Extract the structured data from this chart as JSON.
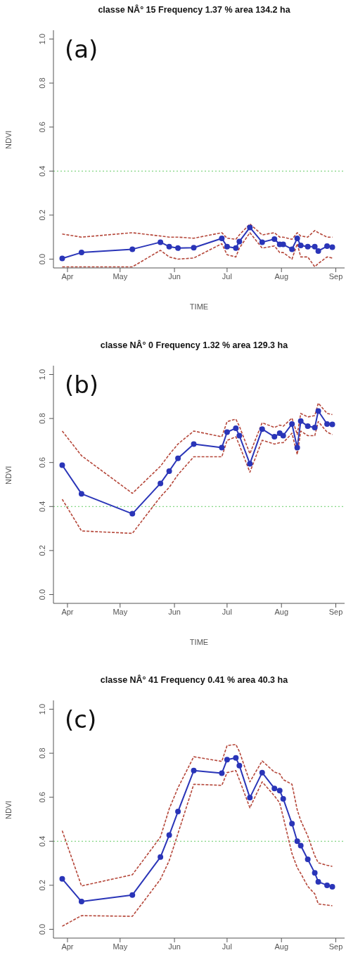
{
  "chart_data": [
    {
      "type": "line",
      "title": "classe NÂ° 15  Frequency 1.37 %  area 134.2 ha",
      "xlabel": "TIME",
      "ylabel": "NDVI",
      "annotations": [
        "(a)"
      ],
      "x": [
        "--03-29",
        "--04-09",
        "--05-08",
        "--05-24",
        "--05-29",
        "--06-03",
        "--06-12",
        "--06-28",
        "--07-01",
        "--07-06",
        "--07-08",
        "--07-14",
        "--07-21",
        "--07-28",
        "--07-31",
        "--08-02",
        "--08-07",
        "--08-10",
        "--08-12",
        "--08-16",
        "--08-20",
        "--08-22",
        "--08-27",
        "--08-30"
      ],
      "series": [
        {
          "color": "#2a35b8",
          "marker": "circle",
          "line_style": "solid",
          "values": [
            0.003,
            0.03,
            0.045,
            0.077,
            0.057,
            0.05,
            0.052,
            0.094,
            0.057,
            0.05,
            0.08,
            0.144,
            0.077,
            0.091,
            0.067,
            0.067,
            0.045,
            0.094,
            0.062,
            0.057,
            0.057,
            0.037,
            0.059,
            0.054
          ]
        },
        {
          "color": "#b5473a",
          "marker": "none",
          "line_style": "dashed",
          "values": [
            0.114,
            0.1,
            0.12,
            0.105,
            0.1,
            0.1,
            0.095,
            0.12,
            0.095,
            0.09,
            0.11,
            0.16,
            0.11,
            0.12,
            0.1,
            0.1,
            0.09,
            0.12,
            0.105,
            0.1,
            0.13,
            0.12,
            0.1,
            0.1
          ]
        },
        {
          "color": "#b5473a",
          "marker": "none",
          "line_style": "dashed",
          "values": [
            -0.035,
            -0.035,
            -0.035,
            0.04,
            0.01,
            0.0,
            0.005,
            0.07,
            0.02,
            0.01,
            0.05,
            0.12,
            0.05,
            0.06,
            0.03,
            0.03,
            0.0,
            0.07,
            0.01,
            0.01,
            -0.035,
            -0.02,
            0.01,
            0.005
          ]
        }
      ],
      "xlim": [
        "--03-24",
        "--09-06"
      ],
      "xticks": [
        {
          "value": "--04-01",
          "label": "Apr"
        },
        {
          "value": "--05-01",
          "label": "May"
        },
        {
          "value": "--06-01",
          "label": "Jun"
        },
        {
          "value": "--07-01",
          "label": "Jul"
        },
        {
          "value": "--08-01",
          "label": "Aug"
        },
        {
          "value": "--09-01",
          "label": "Sep"
        }
      ],
      "ylim": [
        -0.04,
        1.04
      ],
      "yticks": [
        {
          "value": 0,
          "label": "0.0"
        },
        {
          "value": 0.2,
          "label": "0.2"
        },
        {
          "value": 0.4,
          "label": "0.4"
        },
        {
          "value": 0.6,
          "label": "0.6"
        },
        {
          "value": 0.8,
          "label": "0.8"
        },
        {
          "value": 1,
          "label": "1.0"
        }
      ],
      "ref_lines": [
        {
          "axis": "y",
          "value": 0.4,
          "color": "#66cc66",
          "line_style": "dotted"
        }
      ]
    },
    {
      "type": "line",
      "title": "classe NÂ° 0  Frequency 1.32 %  area 129.3 ha",
      "xlabel": "TIME",
      "ylabel": "NDVI",
      "annotations": [
        "(b)"
      ],
      "x": [
        "--03-29",
        "--04-09",
        "--05-08",
        "--05-24",
        "--05-29",
        "--06-03",
        "--06-12",
        "--06-28",
        "--07-01",
        "--07-06",
        "--07-08",
        "--07-14",
        "--07-21",
        "--07-28",
        "--07-31",
        "--08-02",
        "--08-07",
        "--08-10",
        "--08-12",
        "--08-16",
        "--08-20",
        "--08-22",
        "--08-27",
        "--08-30"
      ],
      "series": [
        {
          "color": "#2a35b8",
          "marker": "circle",
          "line_style": "solid",
          "values": [
            0.588,
            0.458,
            0.367,
            0.505,
            0.561,
            0.619,
            0.684,
            0.668,
            0.738,
            0.756,
            0.722,
            0.594,
            0.752,
            0.717,
            0.733,
            0.722,
            0.775,
            0.668,
            0.788,
            0.765,
            0.759,
            0.834,
            0.775,
            0.773
          ]
        },
        {
          "color": "#b5473a",
          "marker": "none",
          "line_style": "dashed",
          "values": [
            0.743,
            0.631,
            0.46,
            0.583,
            0.636,
            0.684,
            0.743,
            0.717,
            0.786,
            0.797,
            0.765,
            0.64,
            0.781,
            0.759,
            0.77,
            0.765,
            0.802,
            0.727,
            0.823,
            0.807,
            0.813,
            0.87,
            0.823,
            0.818
          ]
        },
        {
          "color": "#b5473a",
          "marker": "none",
          "line_style": "dashed",
          "values": [
            0.433,
            0.289,
            0.278,
            0.444,
            0.487,
            0.545,
            0.626,
            0.626,
            0.701,
            0.717,
            0.679,
            0.556,
            0.701,
            0.684,
            0.69,
            0.69,
            0.733,
            0.636,
            0.743,
            0.722,
            0.722,
            0.786,
            0.738,
            0.727
          ]
        }
      ],
      "xlim": [
        "--03-24",
        "--09-06"
      ],
      "xticks": [
        {
          "value": "--04-01",
          "label": "Apr"
        },
        {
          "value": "--05-01",
          "label": "May"
        },
        {
          "value": "--06-01",
          "label": "Jun"
        },
        {
          "value": "--07-01",
          "label": "Jul"
        },
        {
          "value": "--08-01",
          "label": "Aug"
        },
        {
          "value": "--09-01",
          "label": "Sep"
        }
      ],
      "ylim": [
        -0.04,
        1.04
      ],
      "yticks": [
        {
          "value": 0,
          "label": "0.0"
        },
        {
          "value": 0.2,
          "label": "0.2"
        },
        {
          "value": 0.4,
          "label": "0.4"
        },
        {
          "value": 0.6,
          "label": "0.6"
        },
        {
          "value": 0.8,
          "label": "0.8"
        },
        {
          "value": 1,
          "label": "1.0"
        }
      ],
      "ref_lines": [
        {
          "axis": "y",
          "value": 0.4,
          "color": "#66cc66",
          "line_style": "dotted"
        }
      ]
    },
    {
      "type": "line",
      "title": "classe NÂ° 41  Frequency 0.41 %  area 40.3 ha",
      "ylabel": "NDVI",
      "annotations": [
        "(c)"
      ],
      "x": [
        "--03-29",
        "--04-09",
        "--05-08",
        "--05-24",
        "--05-29",
        "--06-03",
        "--06-12",
        "--06-28",
        "--07-01",
        "--07-06",
        "--07-08",
        "--07-14",
        "--07-21",
        "--07-28",
        "--07-31",
        "--08-02",
        "--08-07",
        "--08-10",
        "--08-12",
        "--08-16",
        "--08-20",
        "--08-22",
        "--08-27",
        "--08-30"
      ],
      "series": [
        {
          "color": "#2a35b8",
          "marker": "circle",
          "line_style": "solid",
          "values": [
            0.229,
            0.126,
            0.156,
            0.328,
            0.428,
            0.535,
            0.721,
            0.709,
            0.771,
            0.779,
            0.744,
            0.598,
            0.712,
            0.64,
            0.63,
            0.593,
            0.48,
            0.4,
            0.38,
            0.318,
            0.256,
            0.216,
            0.2,
            0.193
          ]
        },
        {
          "color": "#b5473a",
          "marker": "none",
          "line_style": "dashed",
          "values": [
            0.448,
            0.197,
            0.248,
            0.419,
            0.547,
            0.643,
            0.784,
            0.763,
            0.835,
            0.84,
            0.808,
            0.67,
            0.765,
            0.714,
            0.707,
            0.68,
            0.659,
            0.542,
            0.494,
            0.424,
            0.334,
            0.302,
            0.291,
            0.286
          ]
        },
        {
          "color": "#b5473a",
          "marker": "none",
          "line_style": "dashed",
          "values": [
            0.014,
            0.062,
            0.059,
            0.227,
            0.312,
            0.435,
            0.659,
            0.654,
            0.712,
            0.721,
            0.68,
            0.552,
            0.67,
            0.606,
            0.574,
            0.51,
            0.344,
            0.28,
            0.254,
            0.195,
            0.161,
            0.115,
            0.11,
            0.107
          ]
        }
      ],
      "xlim": [
        "--03-24",
        "--09-06"
      ],
      "xticks": [
        {
          "value": "--04-01",
          "label": "Apr"
        },
        {
          "value": "--05-01",
          "label": "May"
        },
        {
          "value": "--06-01",
          "label": "Jun"
        },
        {
          "value": "--07-01",
          "label": "Jul"
        },
        {
          "value": "--08-01",
          "label": "Aug"
        },
        {
          "value": "--09-01",
          "label": "Sep"
        }
      ],
      "ylim": [
        -0.04,
        1.04
      ],
      "yticks": [
        {
          "value": 0,
          "label": "0.0"
        },
        {
          "value": 0.2,
          "label": "0.2"
        },
        {
          "value": 0.4,
          "label": "0.4"
        },
        {
          "value": 0.6,
          "label": "0.6"
        },
        {
          "value": 0.8,
          "label": "0.8"
        },
        {
          "value": 1,
          "label": "1.0"
        }
      ],
      "ref_lines": [
        {
          "axis": "y",
          "value": 0.4,
          "color": "#66cc66",
          "line_style": "dotted"
        }
      ]
    }
  ]
}
